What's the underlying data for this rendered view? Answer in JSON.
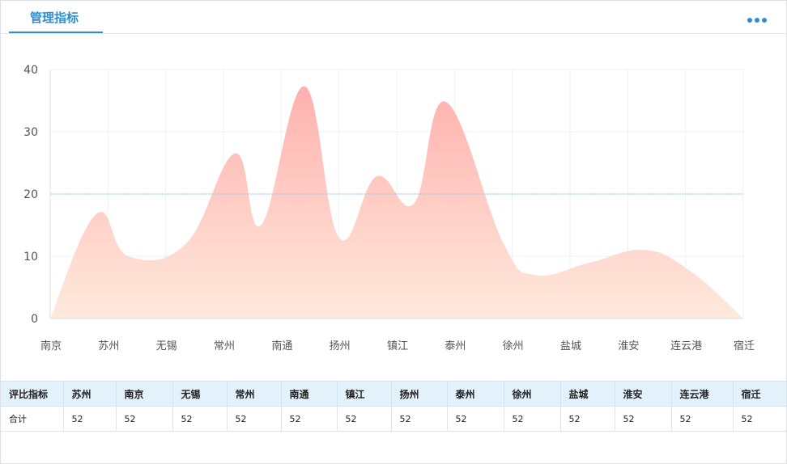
{
  "header": {
    "tab_label": "管理指标",
    "more_icon": "more-horizontal-icon"
  },
  "colors": {
    "accent": "#2d8fd0",
    "area_top": "#ffb1ae",
    "area_bottom": "#ffe9dc",
    "ref_line": "#9cc6e3"
  },
  "chart_data": {
    "type": "area",
    "categories": [
      "南京",
      "苏州",
      "无锡",
      "常州",
      "南通",
      "扬州",
      "镇江",
      "泰州",
      "徐州",
      "盐城",
      "淮安",
      "连云港",
      "宿迁"
    ],
    "yticks": [
      0,
      10,
      20,
      30,
      40
    ],
    "ylim": [
      0,
      40
    ],
    "reference_line": 20,
    "smooth": true,
    "grid": true,
    "series": [
      {
        "x": [
          0,
          0.8,
          1.35,
          2.35,
          3.2,
          3.65,
          4.4,
          5.0,
          5.65,
          6.3,
          6.85,
          7.85,
          8.4,
          9.35,
          10.3,
          11.1,
          12.0
        ],
        "values": [
          0,
          16.8,
          10,
          12,
          26.5,
          15,
          37.3,
          13,
          22.8,
          18.5,
          34.8,
          12,
          7,
          9,
          11,
          7.5,
          0
        ]
      }
    ]
  },
  "table": {
    "header": [
      "评比指标",
      "苏州",
      "南京",
      "无锡",
      "常州",
      "南通",
      "镇江",
      "扬州",
      "泰州",
      "徐州",
      "盐城",
      "淮安",
      "连云港",
      "宿迁"
    ],
    "rows": [
      [
        "合计",
        "52",
        "52",
        "52",
        "52",
        "52",
        "52",
        "52",
        "52",
        "52",
        "52",
        "52",
        "52",
        "52"
      ]
    ]
  }
}
